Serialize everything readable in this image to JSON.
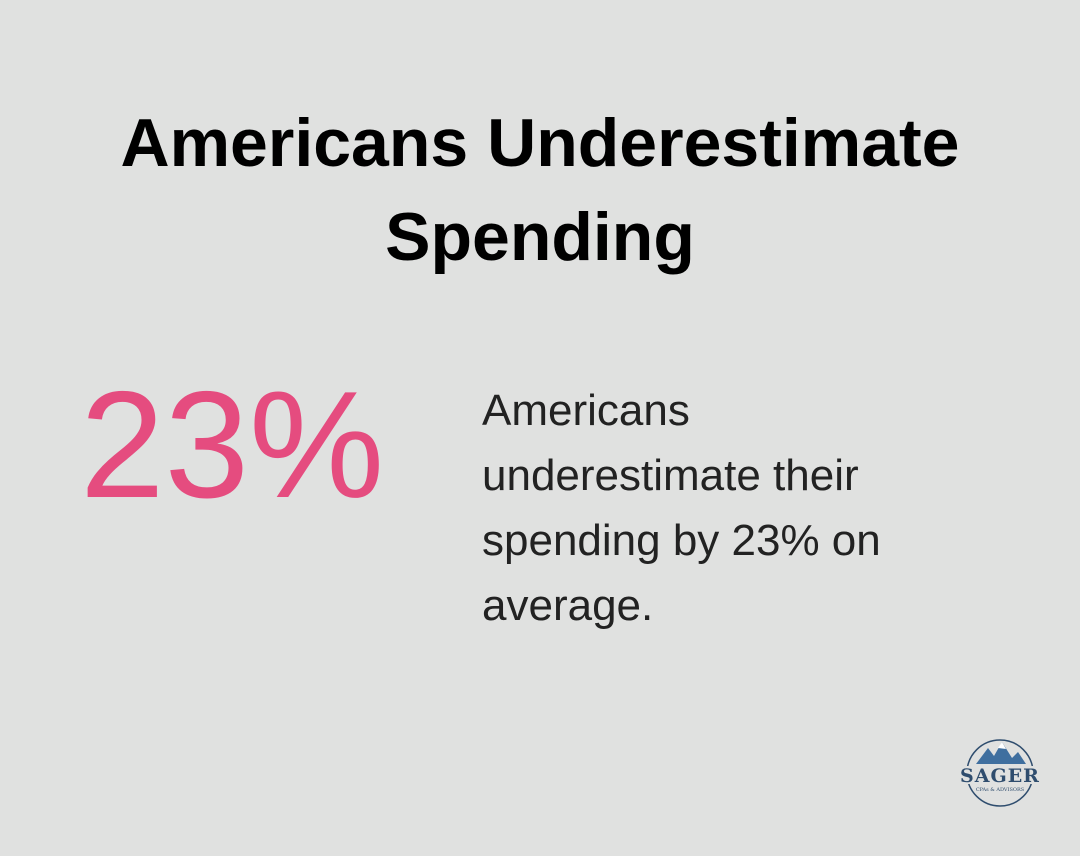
{
  "header": {
    "title": "Americans Underestimate Spending"
  },
  "stat": {
    "value": "23%",
    "description": "Americans underestimate their spending by 23% on average."
  },
  "logo": {
    "name": "SAGER",
    "tagline": "CPAs & ADVISORS"
  }
}
